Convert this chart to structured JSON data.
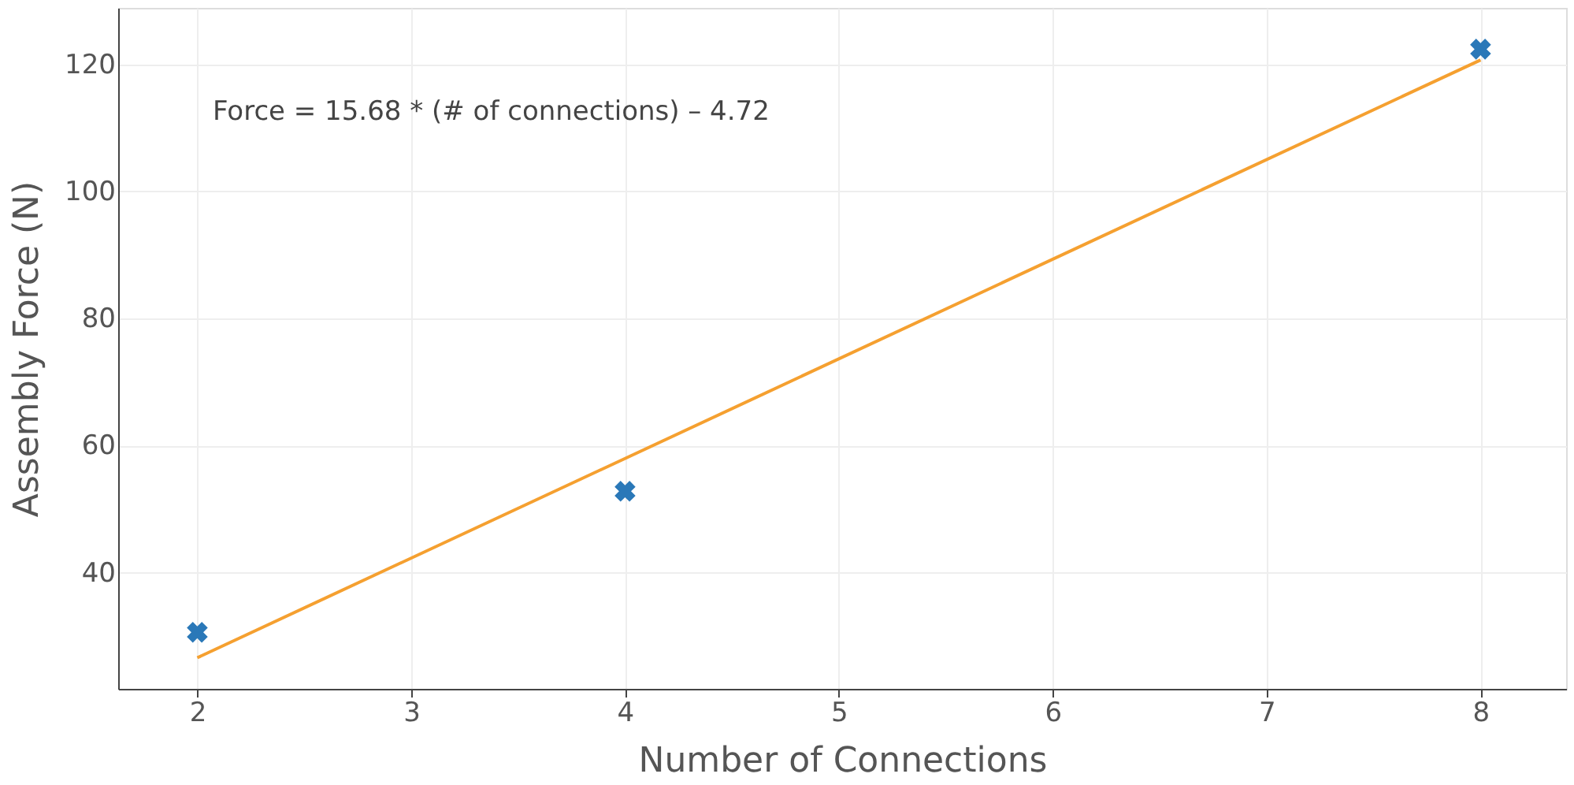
{
  "chart_data": {
    "type": "scatter",
    "xlabel": "Number of Connections",
    "ylabel": "Assembly Force (N)",
    "x": [
      2,
      4,
      8
    ],
    "series": [
      {
        "color": "#2a78b8",
        "marker": "cross",
        "values": [
          30.6,
          52.8,
          122.4
        ]
      },
      {
        "type": "line",
        "color": "#f5a030",
        "x": [
          2,
          8
        ],
        "values": [
          26.6,
          120.7
        ],
        "line_style": "solid",
        "marker": "none"
      }
    ],
    "annotations": [
      "Force = 15.68 * (# of connections) – 4.72"
    ],
    "xlim": [
      1.63,
      8.4
    ],
    "xticks": [
      2,
      3,
      4,
      5,
      6,
      7,
      8
    ],
    "ylim": [
      21.7,
      128.9
    ],
    "yticks": [
      40,
      60,
      80,
      100,
      120
    ],
    "grid": true
  }
}
